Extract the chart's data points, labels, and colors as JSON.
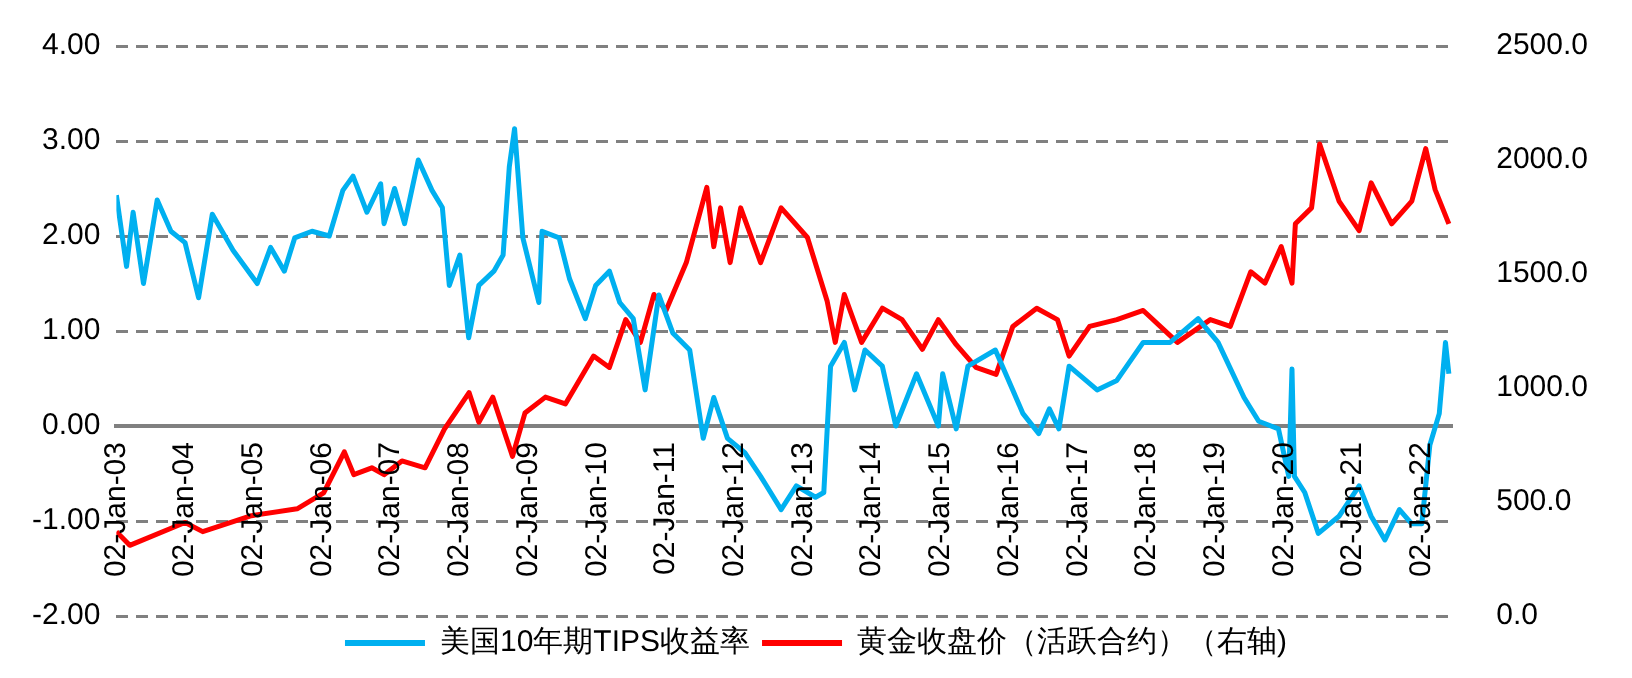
{
  "chart_data": {
    "type": "line",
    "legend": "bottom",
    "grid": "y",
    "marker": "none",
    "xlim": [
      "2003-01-02",
      "2022-06-13"
    ],
    "xticks": [
      {
        "value": "2003-01-02",
        "label": "02-Jan-03"
      },
      {
        "value": "2004-01-02",
        "label": "02-Jan-04"
      },
      {
        "value": "2005-01-02",
        "label": "02-Jan-05"
      },
      {
        "value": "2006-01-02",
        "label": "02-Jan-06"
      },
      {
        "value": "2007-01-02",
        "label": "02-Jan-07"
      },
      {
        "value": "2008-01-02",
        "label": "02-Jan-08"
      },
      {
        "value": "2009-01-02",
        "label": "02-Jan-09"
      },
      {
        "value": "2010-01-02",
        "label": "02-Jan-10"
      },
      {
        "value": "2011-01-02",
        "label": "02-Jan-11"
      },
      {
        "value": "2012-01-02",
        "label": "02-Jan-12"
      },
      {
        "value": "2013-01-02",
        "label": "02-Jan-13"
      },
      {
        "value": "2014-01-02",
        "label": "02-Jan-14"
      },
      {
        "value": "2015-01-02",
        "label": "02-Jan-15"
      },
      {
        "value": "2016-01-02",
        "label": "02-Jan-16"
      },
      {
        "value": "2017-01-02",
        "label": "02-Jan-17"
      },
      {
        "value": "2018-01-02",
        "label": "02-Jan-18"
      },
      {
        "value": "2019-01-02",
        "label": "02-Jan-19"
      },
      {
        "value": "2020-01-02",
        "label": "02-Jan-20"
      },
      {
        "value": "2021-01-02",
        "label": "02-Jan-21"
      },
      {
        "value": "2022-01-02",
        "label": "02-Jan-22"
      }
    ],
    "ylim": [
      -2,
      4
    ],
    "yticks": [
      {
        "value": -2,
        "label": "-2.00"
      },
      {
        "value": -1,
        "label": "-1.00"
      },
      {
        "value": 0,
        "label": "0.00"
      },
      {
        "value": 1,
        "label": "1.00"
      },
      {
        "value": 2,
        "label": "2.00"
      },
      {
        "value": 3,
        "label": "3.00"
      },
      {
        "value": 4,
        "label": "4.00"
      }
    ],
    "y2lim": [
      0,
      2500
    ],
    "y2ticks": [
      {
        "value": 0,
        "label": "0.0"
      },
      {
        "value": 500,
        "label": "500.0"
      },
      {
        "value": 1000,
        "label": "1000.0"
      },
      {
        "value": 1500,
        "label": "1500.0"
      },
      {
        "value": 2000,
        "label": "2000.0"
      },
      {
        "value": 2500,
        "label": "2500.0"
      }
    ],
    "series": [
      {
        "name": "美国10年期TIPS收益率",
        "color": "#00b0f0",
        "x": [
          "2003-01-02",
          "2003-02-25",
          "2003-04-01",
          "2003-05-26",
          "2003-08-07",
          "2003-10-19",
          "2004-01-02",
          "2004-03-14",
          "2004-05-26",
          "2004-09-13",
          "2005-01-20",
          "2005-04-01",
          "2005-06-13",
          "2005-08-07",
          "2005-11-07",
          "2006-02-07",
          "2006-04-20",
          "2006-06-13",
          "2006-08-26",
          "2006-11-07",
          "2006-11-25",
          "2007-01-20",
          "2007-03-14",
          "2007-05-26",
          "2007-08-07",
          "2007-10-01",
          "2007-11-07",
          "2008-01-02",
          "2008-02-18",
          "2008-04-12",
          "2008-07-01",
          "2008-08-19",
          "2008-09-21",
          "2008-10-19",
          "2008-12-02",
          "2009-02-25",
          "2009-03-14",
          "2009-06-13",
          "2009-08-07",
          "2009-10-30",
          "2009-12-24",
          "2010-03-07",
          "2010-05-01",
          "2010-07-12",
          "2010-09-13",
          "2010-11-25",
          "2011-02-07",
          "2011-05-08",
          "2011-07-19",
          "2011-09-13",
          "2011-11-25",
          "2012-02-25",
          "2012-05-19",
          "2012-09-05",
          "2012-11-25",
          "2013-03-07",
          "2013-04-20",
          "2013-05-26",
          "2013-08-07",
          "2013-10-01",
          "2013-11-25",
          "2014-02-25",
          "2014-05-08",
          "2014-08-26",
          "2014-12-20",
          "2015-01-12",
          "2015-03-25",
          "2015-05-26",
          "2015-10-19",
          "2016-03-14",
          "2016-06-06",
          "2016-08-01",
          "2016-09-21",
          "2016-11-14",
          "2017-04-12",
          "2017-07-26",
          "2017-12-13",
          "2018-05-05",
          "2018-10-01",
          "2019-01-15",
          "2019-06-02",
          "2019-08-19",
          "2019-12-02",
          "2020-01-26",
          "2020-02-12",
          "2020-02-25",
          "2020-04-20",
          "2020-07-01",
          "2020-10-19",
          "2021-02-03",
          "2021-04-08",
          "2021-06-20",
          "2021-09-05",
          "2021-11-10",
          "2022-01-02",
          "2022-02-14",
          "2022-04-05",
          "2022-05-08",
          "2022-05-26"
        ],
        "values": [
          2.43,
          1.68,
          2.25,
          1.5,
          2.38,
          2.05,
          1.93,
          1.35,
          2.23,
          1.85,
          1.5,
          1.88,
          1.63,
          1.98,
          2.05,
          2.0,
          2.48,
          2.63,
          2.25,
          2.55,
          2.13,
          2.5,
          2.13,
          2.8,
          2.48,
          2.3,
          1.48,
          1.8,
          0.93,
          1.48,
          1.63,
          1.8,
          2.73,
          3.13,
          1.98,
          1.3,
          2.05,
          1.98,
          1.55,
          1.13,
          1.48,
          1.63,
          1.3,
          1.13,
          0.38,
          1.38,
          0.98,
          0.8,
          -0.13,
          0.3,
          -0.13,
          -0.28,
          -0.53,
          -0.88,
          -0.63,
          -0.75,
          -0.7,
          0.63,
          0.88,
          0.38,
          0.8,
          0.63,
          0.0,
          0.55,
          0.0,
          0.55,
          -0.03,
          0.63,
          0.8,
          0.13,
          -0.08,
          0.18,
          -0.03,
          0.63,
          0.38,
          0.48,
          0.88,
          0.88,
          1.13,
          0.88,
          0.3,
          0.05,
          -0.03,
          -0.53,
          0.6,
          -0.53,
          -0.7,
          -1.13,
          -0.95,
          -0.63,
          -0.95,
          -1.2,
          -0.88,
          -1.03,
          -1.03,
          -0.2,
          0.13,
          0.88,
          0.55
        ]
      },
      {
        "name": "黄金收盘价（活跃合约）（右轴)",
        "color": "#ff0000",
        "axis": "y2",
        "x": [
          "2003-01-02",
          "2003-03-14",
          "2004-01-02",
          "2004-04-05",
          "2004-12-20",
          "2005-08-20",
          "2006-01-08",
          "2006-04-28",
          "2006-06-17",
          "2006-09-21",
          "2006-11-25",
          "2007-02-28",
          "2007-07-01",
          "2007-10-12",
          "2008-02-20",
          "2008-04-12",
          "2008-06-25",
          "2008-10-08",
          "2008-12-13",
          "2009-04-01",
          "2009-07-16",
          "2009-12-13",
          "2010-03-07",
          "2010-06-02",
          "2010-08-19",
          "2010-10-30",
          "2011-01-02",
          "2011-04-20",
          "2011-08-07",
          "2011-09-13",
          "2011-10-19",
          "2011-12-09",
          "2012-02-03",
          "2012-05-19",
          "2012-09-05",
          "2013-01-23",
          "2013-05-08",
          "2013-06-20",
          "2013-08-07",
          "2013-11-07",
          "2014-02-25",
          "2014-06-10",
          "2014-09-26",
          "2014-12-20",
          "2015-03-25",
          "2015-07-08",
          "2015-10-23",
          "2016-01-20",
          "2016-05-26",
          "2016-09-13",
          "2016-11-14",
          "2017-03-03",
          "2017-07-26",
          "2017-12-13",
          "2018-06-13",
          "2018-12-05",
          "2019-03-21",
          "2019-07-08",
          "2019-09-21",
          "2019-12-17",
          "2020-02-12",
          "2020-03-01",
          "2020-05-26",
          "2020-07-08",
          "2020-10-19",
          "2021-02-03",
          "2021-04-08",
          "2021-07-26",
          "2021-11-10",
          "2022-01-23",
          "2022-03-14",
          "2022-05-26"
        ],
        "values": [
          370,
          310,
          410,
          370,
          440,
          470,
          540,
          720,
          620,
          650,
          620,
          680,
          650,
          820,
          980,
          850,
          960,
          700,
          890,
          960,
          930,
          1140,
          1090,
          1300,
          1200,
          1410,
          1340,
          1550,
          1880,
          1620,
          1790,
          1550,
          1790,
          1550,
          1790,
          1660,
          1380,
          1200,
          1410,
          1200,
          1350,
          1300,
          1170,
          1300,
          1190,
          1090,
          1060,
          1270,
          1350,
          1300,
          1140,
          1270,
          1300,
          1340,
          1200,
          1300,
          1270,
          1510,
          1460,
          1620,
          1460,
          1720,
          1790,
          2070,
          1820,
          1690,
          1900,
          1720,
          1820,
          2050,
          1870,
          1720
        ]
      }
    ]
  }
}
